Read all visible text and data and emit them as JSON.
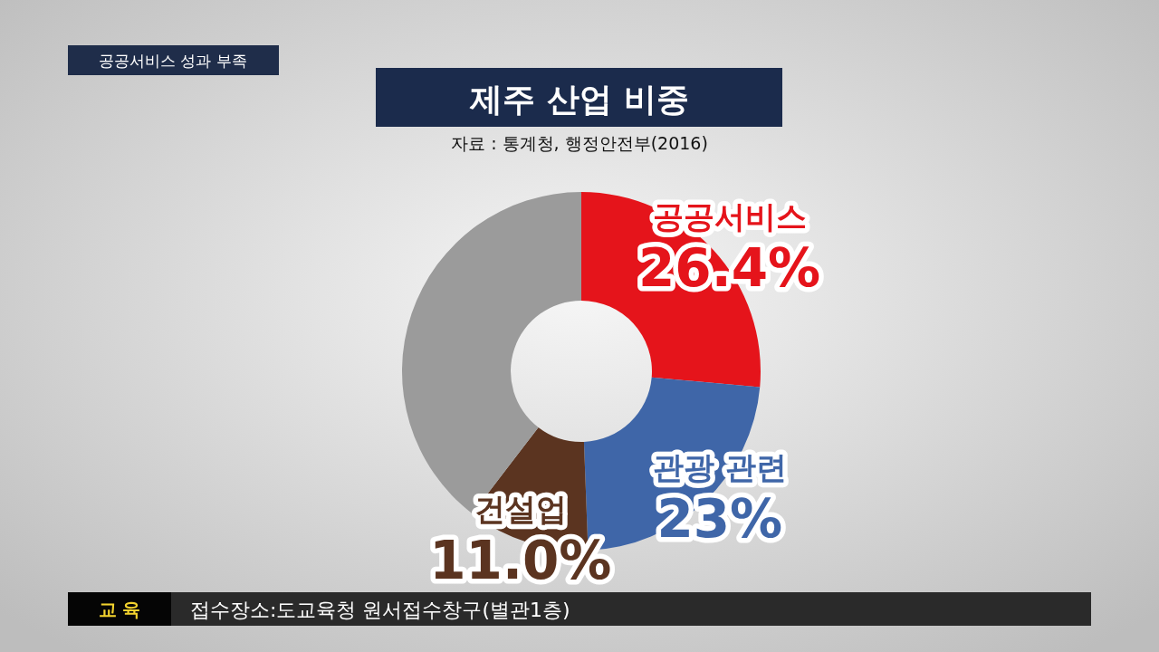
{
  "chart_data": {
    "type": "donut",
    "title": "제주 산업 비중",
    "subtitle": "자료 : 통계청, 행정안전부(2016)",
    "categories": [
      "공공서비스",
      "관광 관련",
      "건설업",
      null
    ],
    "values": [
      26.4,
      23,
      11.0,
      39.6
    ],
    "value_labels": [
      "26.4%",
      "23%",
      "11.0%",
      null
    ],
    "colors": [
      "#e5141b",
      "#3f66a8",
      "#5b3420",
      "#9b9b9b"
    ],
    "annotations": [
      "공공서비스 성과 부족",
      "교 육",
      "접수장소:도교육청 원서접수창구(별관1층)"
    ]
  }
}
